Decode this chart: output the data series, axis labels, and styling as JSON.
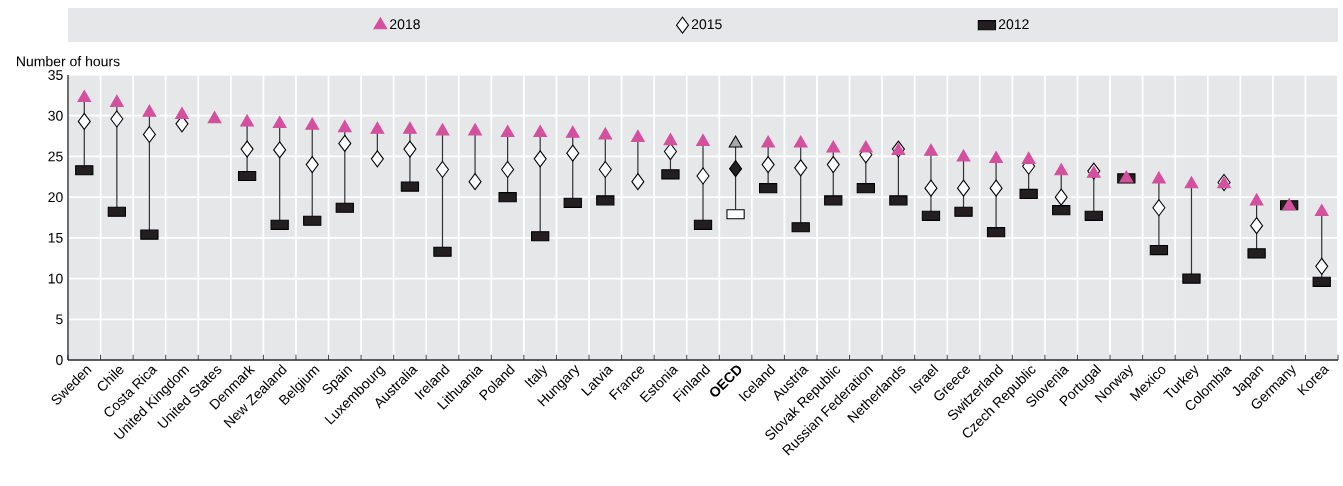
{
  "chart_data": {
    "type": "scatter",
    "ylabel": "Number of hours",
    "categories": [
      "Sweden",
      "Chile",
      "Costa Rica",
      "United Kingdom",
      "United States",
      "Denmark",
      "New Zealand",
      "Belgium",
      "Spain",
      "Luxembourg",
      "Australia",
      "Ireland",
      "Lithuania",
      "Poland",
      "Italy",
      "Hungary",
      "Latvia",
      "France",
      "Estonia",
      "Finland",
      "**OECD**",
      "Iceland",
      "Austria",
      "Slovak Republic",
      "Russian Federation",
      "Netherlands",
      "Israel",
      "Greece",
      "Switzerland",
      "Czech Republic",
      "Slovenia",
      "Portugal",
      "Norway",
      "Mexico",
      "Turkey",
      "Colombia",
      "Japan",
      "Germany",
      "Korea"
    ],
    "series": [
      {
        "name": "2018",
        "color": "#d4509e",
        "marker": "triangle",
        "colors": [
          "#d4509e",
          "#d4509e",
          "#d4509e",
          "#d4509e",
          "#d4509e",
          "#d4509e",
          "#d4509e",
          "#d4509e",
          "#d4509e",
          "#d4509e",
          "#d4509e",
          "#d4509e",
          "#d4509e",
          "#d4509e",
          "#d4509e",
          "#d4509e",
          "#d4509e",
          "#d4509e",
          "#d4509e",
          "#d4509e",
          "#a7a9ac",
          "#d4509e",
          "#d4509e",
          "#d4509e",
          "#d4509e",
          "#d4509e",
          "#d4509e",
          "#d4509e",
          "#d4509e",
          "#d4509e",
          "#d4509e",
          "#d4509e",
          "#d4509e",
          "#d4509e",
          "#d4509e",
          "#d4509e",
          "#d4509e",
          "#d4509e",
          "#d4509e"
        ],
        "values": [
          32.2,
          31.6,
          30.4,
          30.1,
          29.6,
          29.2,
          29.0,
          28.8,
          28.5,
          28.3,
          28.3,
          28.1,
          28.1,
          27.9,
          27.9,
          27.8,
          27.6,
          27.3,
          26.9,
          26.8,
          26.6,
          26.6,
          26.6,
          26.0,
          26.0,
          25.7,
          25.6,
          24.9,
          24.7,
          24.6,
          23.2,
          22.9,
          22.3,
          22.2,
          21.6,
          21.6,
          19.5,
          18.9,
          18.2
        ]
      },
      {
        "name": "2015",
        "color": "#ffffff",
        "marker": "diamond",
        "colors": [
          "#ffffff",
          "#ffffff",
          "#ffffff",
          "#ffffff",
          "#ffffff",
          "#ffffff",
          "#ffffff",
          "#ffffff",
          "#ffffff",
          "#ffffff",
          "#ffffff",
          "#ffffff",
          "#ffffff",
          "#ffffff",
          "#ffffff",
          "#ffffff",
          "#ffffff",
          "#ffffff",
          "#ffffff",
          "#ffffff",
          "#231f20",
          "#ffffff",
          "#ffffff",
          "#ffffff",
          "#ffffff",
          "#ffffff",
          "#ffffff",
          "#ffffff",
          "#ffffff",
          "#ffffff",
          "#ffffff",
          "#ffffff",
          "#ffffff",
          "#ffffff",
          "#ffffff",
          "#ffffff",
          "#ffffff",
          "#ffffff",
          "#ffffff"
        ],
        "values": [
          29.3,
          29.6,
          27.7,
          29.0,
          null,
          25.9,
          25.8,
          24.0,
          26.6,
          24.7,
          25.9,
          23.4,
          21.9,
          23.4,
          24.7,
          25.4,
          23.4,
          21.9,
          25.6,
          22.6,
          23.5,
          24.0,
          23.6,
          24.0,
          25.2,
          25.9,
          21.1,
          21.1,
          21.1,
          23.8,
          20.0,
          23.2,
          null,
          18.7,
          null,
          21.8,
          16.5,
          null,
          11.5
        ]
      },
      {
        "name": "2012",
        "color": "#231f20",
        "marker": "square",
        "colors": [
          "#231f20",
          "#231f20",
          "#231f20",
          "#231f20",
          "#231f20",
          "#231f20",
          "#231f20",
          "#231f20",
          "#231f20",
          "#231f20",
          "#231f20",
          "#231f20",
          "#231f20",
          "#231f20",
          "#231f20",
          "#231f20",
          "#231f20",
          "#231f20",
          "#231f20",
          "#231f20",
          "#ffffff",
          "#231f20",
          "#231f20",
          "#231f20",
          "#231f20",
          "#231f20",
          "#231f20",
          "#231f20",
          "#231f20",
          "#231f20",
          "#231f20",
          "#231f20",
          "#231f20",
          "#231f20",
          "#231f20",
          "#231f20",
          "#231f20",
          "#231f20",
          "#231f20"
        ],
        "values": [
          23.3,
          18.2,
          15.4,
          null,
          null,
          22.6,
          16.6,
          17.1,
          18.7,
          null,
          21.3,
          13.3,
          null,
          20.0,
          15.2,
          19.3,
          19.6,
          null,
          22.8,
          16.6,
          17.9,
          21.1,
          16.3,
          19.6,
          21.1,
          19.6,
          17.7,
          18.2,
          15.7,
          20.4,
          18.4,
          17.7,
          22.3,
          13.5,
          10.0,
          null,
          13.1,
          19.0,
          9.6
        ]
      }
    ],
    "ylim": [
      0,
      35
    ],
    "yticks": [
      0,
      5,
      10,
      15,
      20,
      25,
      30,
      35
    ],
    "grid": true,
    "legend": "top"
  }
}
